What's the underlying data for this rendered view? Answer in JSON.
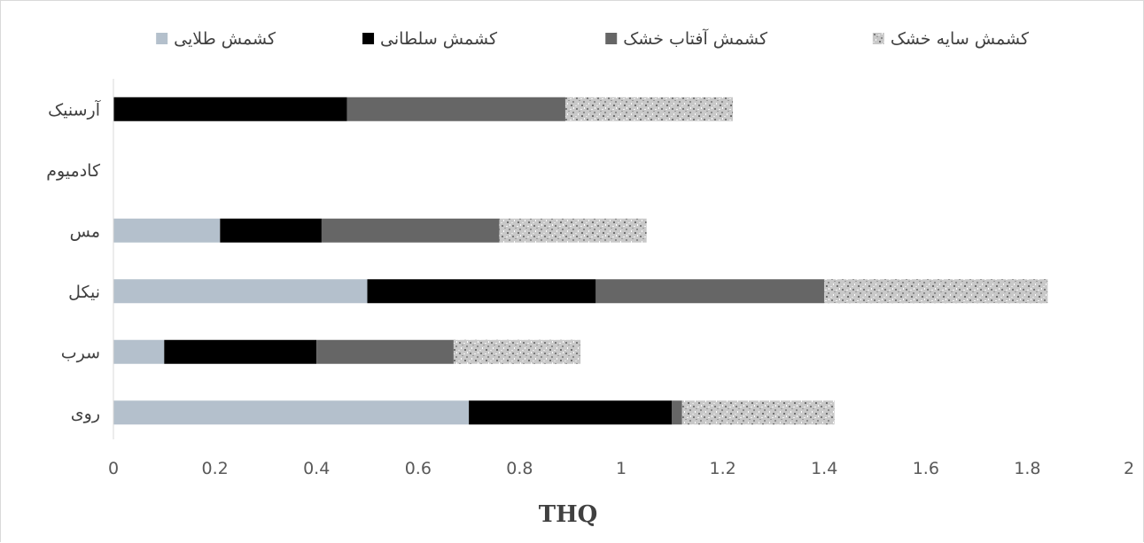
{
  "chart_data": {
    "type": "bar",
    "orientation": "horizontal",
    "stacked": true,
    "categories": [
      "آرسنیک",
      "کادمیوم",
      "مس",
      "نیکل",
      "سرب",
      "روی"
    ],
    "series": [
      {
        "name": "کشمش طلایی",
        "color": "#b4c0cc",
        "pattern": "solid",
        "values": [
          0,
          0,
          0.21,
          0.5,
          0.1,
          0.7
        ]
      },
      {
        "name": "کشمش سلطانی",
        "color": "#000000",
        "pattern": "solid",
        "values": [
          0.46,
          0,
          0.2,
          0.45,
          0.3,
          0.4
        ]
      },
      {
        "name": "کشمش آفتاب خشک",
        "color": "#666666",
        "pattern": "solid",
        "values": [
          0.43,
          0,
          0.35,
          0.45,
          0.27,
          0.02
        ]
      },
      {
        "name": "کشمش سایه خشک",
        "color": "#bdbdbd",
        "pattern": "speckled",
        "values": [
          0.33,
          0,
          0.29,
          0.44,
          0.25,
          0.3
        ]
      }
    ],
    "xlabel": "THQ",
    "ylabel": "",
    "xlim": [
      0,
      2
    ],
    "x_ticks": [
      "0",
      "0.2",
      "0.4",
      "0.6",
      "0.8",
      "1",
      "1.2",
      "1.4",
      "1.6",
      "1.8",
      "2"
    ],
    "grid": false,
    "legend_position": "top"
  }
}
